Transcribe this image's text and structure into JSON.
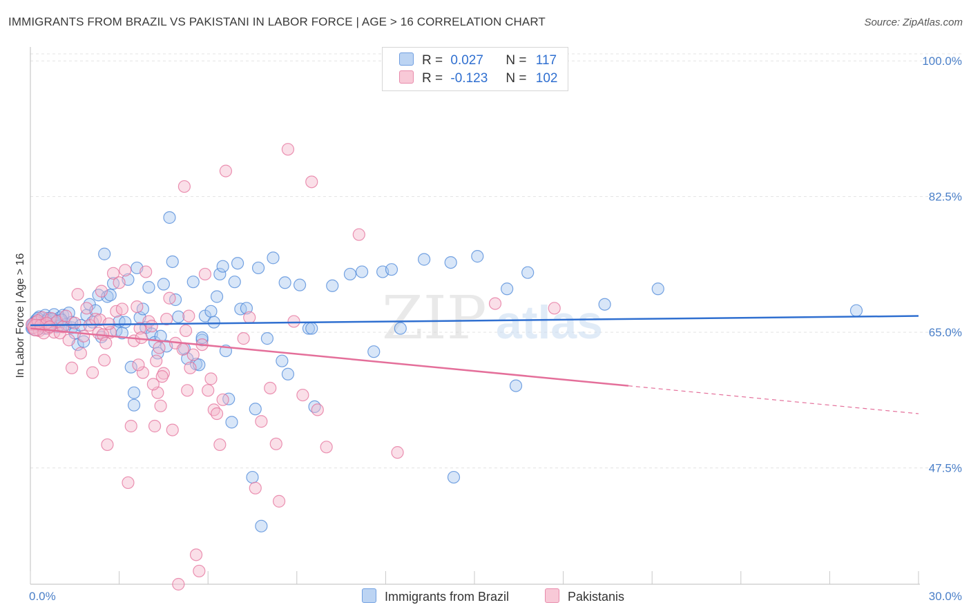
{
  "title": "IMMIGRANTS FROM BRAZIL VS PAKISTANI IN LABOR FORCE | AGE > 16 CORRELATION CHART",
  "source": "Source: ZipAtlas.com",
  "watermark": {
    "zip": "ZIP",
    "atlas": "atlas"
  },
  "legend": {
    "rows": [
      {
        "r_label": "R =",
        "r_value": "0.027",
        "n_label": "N =",
        "n_value": "117",
        "color": "#a9c8f0"
      },
      {
        "r_label": "R =",
        "r_value": "-0.123",
        "n_label": "N =",
        "n_value": "102",
        "color": "#f5b8cb"
      }
    ]
  },
  "bottom_legend": [
    {
      "label": "Immigrants from Brazil",
      "color": "#a9c8f0"
    },
    {
      "label": "Pakistanis",
      "color": "#f5b8cb"
    }
  ],
  "chart_data": {
    "type": "scatter",
    "title": "IMMIGRANTS FROM BRAZIL VS PAKISTANI IN LABOR FORCE | AGE > 16 CORRELATION CHART",
    "xlabel": "",
    "ylabel": "In Labor Force | Age > 16",
    "xlim": [
      0,
      30
    ],
    "ylim": [
      32.5,
      101.8
    ],
    "x_tick_labels": [
      "0.0%",
      "30.0%"
    ],
    "y_ticks": [
      47.5,
      65.0,
      82.5,
      100.0
    ],
    "y_tick_labels": [
      "47.5%",
      "65.0%",
      "82.5%",
      "100.0%"
    ],
    "grid": "horizontal dashed",
    "legend_position": "top-center",
    "series": [
      {
        "name": "Immigrants from Brazil",
        "color": "#4a86d8",
        "fill": "#a9c8f0",
        "trend": {
          "x": [
            0,
            30
          ],
          "y": [
            65.9,
            67.1
          ],
          "dashed_from": null
        },
        "points": [
          [
            0.1,
            66.1
          ],
          [
            0.2,
            66.6
          ],
          [
            0.3,
            65.8
          ],
          [
            0.3,
            67.0
          ],
          [
            0.4,
            66.3
          ],
          [
            0.5,
            65.5
          ],
          [
            0.5,
            67.2
          ],
          [
            0.6,
            66.8
          ],
          [
            0.7,
            65.9
          ],
          [
            0.8,
            66.5
          ],
          [
            0.8,
            67.3
          ],
          [
            0.9,
            65.7
          ],
          [
            1.0,
            66.4
          ],
          [
            1.0,
            66.9
          ],
          [
            1.1,
            67.2
          ],
          [
            1.2,
            66.0
          ],
          [
            1.3,
            67.5
          ],
          [
            1.4,
            65.6
          ],
          [
            1.4,
            66.3
          ],
          [
            1.5,
            64.9
          ],
          [
            1.6,
            63.4
          ],
          [
            1.7,
            65.9
          ],
          [
            1.8,
            63.8
          ],
          [
            1.9,
            67.2
          ],
          [
            2.0,
            68.6
          ],
          [
            2.1,
            66.3
          ],
          [
            2.2,
            67.8
          ],
          [
            2.3,
            69.8
          ],
          [
            2.4,
            64.4
          ],
          [
            2.5,
            75.1
          ],
          [
            2.6,
            69.6
          ],
          [
            2.7,
            69.8
          ],
          [
            2.8,
            71.3
          ],
          [
            2.9,
            65.2
          ],
          [
            3.0,
            66.4
          ],
          [
            3.1,
            64.9
          ],
          [
            3.2,
            66.3
          ],
          [
            3.3,
            71.8
          ],
          [
            3.4,
            60.5
          ],
          [
            3.5,
            57.2
          ],
          [
            3.5,
            55.6
          ],
          [
            3.6,
            73.3
          ],
          [
            3.7,
            66.9
          ],
          [
            3.8,
            68.0
          ],
          [
            3.9,
            65.6
          ],
          [
            4.0,
            70.8
          ],
          [
            4.1,
            64.8
          ],
          [
            4.2,
            63.7
          ],
          [
            4.3,
            62.3
          ],
          [
            4.4,
            64.5
          ],
          [
            4.5,
            71.2
          ],
          [
            4.6,
            63.2
          ],
          [
            4.7,
            79.8
          ],
          [
            4.8,
            74.1
          ],
          [
            4.9,
            69.2
          ],
          [
            5.0,
            67.0
          ],
          [
            5.2,
            62.9
          ],
          [
            5.3,
            61.6
          ],
          [
            5.5,
            71.5
          ],
          [
            5.6,
            60.9
          ],
          [
            5.7,
            60.8
          ],
          [
            5.8,
            64.0
          ],
          [
            5.8,
            64.3
          ],
          [
            5.9,
            67.1
          ],
          [
            6.1,
            67.7
          ],
          [
            6.2,
            66.3
          ],
          [
            6.3,
            69.6
          ],
          [
            6.4,
            72.5
          ],
          [
            6.5,
            73.5
          ],
          [
            6.6,
            62.6
          ],
          [
            6.7,
            56.4
          ],
          [
            6.8,
            53.4
          ],
          [
            6.9,
            71.5
          ],
          [
            7.0,
            73.9
          ],
          [
            7.1,
            68.0
          ],
          [
            7.3,
            68.1
          ],
          [
            7.5,
            46.3
          ],
          [
            7.6,
            55.1
          ],
          [
            7.7,
            73.3
          ],
          [
            7.8,
            40.0
          ],
          [
            8.0,
            64.2
          ],
          [
            8.2,
            74.6
          ],
          [
            8.5,
            61.3
          ],
          [
            8.6,
            71.4
          ],
          [
            8.7,
            59.6
          ],
          [
            9.1,
            71.1
          ],
          [
            9.4,
            65.5
          ],
          [
            9.5,
            65.5
          ],
          [
            9.6,
            55.4
          ],
          [
            10.2,
            71.0
          ],
          [
            10.8,
            72.5
          ],
          [
            11.2,
            72.8
          ],
          [
            11.6,
            62.5
          ],
          [
            11.9,
            72.8
          ],
          [
            12.2,
            73.1
          ],
          [
            12.5,
            65.5
          ],
          [
            13.3,
            74.4
          ],
          [
            14.2,
            74.0
          ],
          [
            14.3,
            46.3
          ],
          [
            15.1,
            74.8
          ],
          [
            16.1,
            70.6
          ],
          [
            16.4,
            58.1
          ],
          [
            16.8,
            72.7
          ],
          [
            19.4,
            68.6
          ],
          [
            21.2,
            70.6
          ],
          [
            27.9,
            67.8
          ],
          [
            0.05,
            65.5
          ],
          [
            0.15,
            66.2
          ],
          [
            0.25,
            66.8
          ],
          [
            0.35,
            66.1
          ],
          [
            0.45,
            65.9
          ],
          [
            0.55,
            66.5
          ],
          [
            0.65,
            66.0
          ],
          [
            0.75,
            66.7
          ],
          [
            0.85,
            66.2
          ],
          [
            0.95,
            65.8
          ],
          [
            1.05,
            66.6
          ]
        ]
      },
      {
        "name": "Pakistanis",
        "color": "#e46f9a",
        "fill": "#f5b8cb",
        "trend": {
          "x": [
            0,
            30
          ],
          "y": [
            65.5,
            54.5
          ],
          "dashed_from": 20.2
        },
        "points": [
          [
            0.1,
            65.6
          ],
          [
            0.2,
            66.3
          ],
          [
            0.3,
            65.2
          ],
          [
            0.4,
            66.9
          ],
          [
            0.5,
            66.0
          ],
          [
            0.6,
            65.5
          ],
          [
            0.7,
            66.8
          ],
          [
            0.8,
            65.0
          ],
          [
            0.9,
            66.4
          ],
          [
            1.0,
            64.9
          ],
          [
            1.1,
            65.7
          ],
          [
            1.2,
            67.1
          ],
          [
            1.3,
            64.0
          ],
          [
            1.4,
            60.4
          ],
          [
            1.5,
            66.2
          ],
          [
            1.6,
            69.9
          ],
          [
            1.7,
            62.3
          ],
          [
            1.8,
            64.5
          ],
          [
            1.9,
            68.1
          ],
          [
            2.0,
            65.9
          ],
          [
            2.1,
            59.8
          ],
          [
            2.2,
            66.7
          ],
          [
            2.3,
            64.9
          ],
          [
            2.4,
            70.3
          ],
          [
            2.5,
            61.4
          ],
          [
            2.6,
            50.5
          ],
          [
            2.7,
            65.0
          ],
          [
            2.8,
            72.6
          ],
          [
            2.9,
            67.7
          ],
          [
            3.0,
            71.4
          ],
          [
            3.1,
            68.0
          ],
          [
            3.2,
            73.0
          ],
          [
            3.3,
            45.6
          ],
          [
            3.4,
            52.9
          ],
          [
            3.5,
            63.9
          ],
          [
            3.6,
            68.3
          ],
          [
            3.7,
            65.5
          ],
          [
            3.8,
            59.8
          ],
          [
            3.9,
            72.8
          ],
          [
            4.0,
            66.4
          ],
          [
            4.1,
            65.8
          ],
          [
            4.2,
            52.9
          ],
          [
            4.3,
            57.2
          ],
          [
            4.4,
            55.5
          ],
          [
            4.5,
            59.7
          ],
          [
            4.6,
            66.7
          ],
          [
            4.7,
            69.4
          ],
          [
            4.8,
            52.4
          ],
          [
            4.9,
            63.6
          ],
          [
            5.0,
            32.5
          ],
          [
            5.2,
            83.8
          ],
          [
            5.3,
            57.5
          ],
          [
            5.4,
            60.4
          ],
          [
            5.5,
            62.1
          ],
          [
            5.6,
            36.3
          ],
          [
            5.7,
            34.2
          ],
          [
            5.8,
            63.4
          ],
          [
            5.9,
            72.5
          ],
          [
            6.0,
            57.5
          ],
          [
            6.1,
            59.0
          ],
          [
            6.2,
            55.0
          ],
          [
            6.3,
            54.5
          ],
          [
            6.4,
            50.5
          ],
          [
            6.5,
            56.3
          ],
          [
            6.6,
            85.8
          ],
          [
            7.2,
            64.2
          ],
          [
            7.4,
            66.9
          ],
          [
            7.6,
            44.9
          ],
          [
            7.8,
            53.5
          ],
          [
            8.1,
            57.8
          ],
          [
            8.3,
            50.6
          ],
          [
            8.4,
            43.2
          ],
          [
            8.7,
            88.6
          ],
          [
            8.9,
            66.4
          ],
          [
            9.2,
            56.9
          ],
          [
            9.5,
            84.4
          ],
          [
            9.7,
            55.0
          ],
          [
            10.0,
            50.2
          ],
          [
            11.1,
            77.6
          ],
          [
            12.4,
            49.5
          ],
          [
            15.7,
            68.7
          ],
          [
            17.7,
            68.1
          ],
          [
            2.35,
            66.6
          ],
          [
            2.45,
            64.7
          ],
          [
            2.55,
            63.6
          ],
          [
            2.65,
            66.1
          ],
          [
            3.65,
            60.8
          ],
          [
            3.75,
            64.3
          ],
          [
            4.15,
            58.3
          ],
          [
            4.25,
            61.3
          ],
          [
            4.35,
            63.0
          ],
          [
            4.45,
            59.3
          ],
          [
            5.15,
            62.8
          ],
          [
            5.25,
            65.2
          ],
          [
            5.35,
            67.1
          ],
          [
            0.05,
            66.0
          ],
          [
            0.15,
            65.3
          ],
          [
            0.25,
            66.5
          ],
          [
            0.35,
            65.9
          ],
          [
            0.45,
            64.9
          ],
          [
            0.55,
            66.2
          ],
          [
            0.65,
            65.7
          ]
        ]
      }
    ]
  }
}
